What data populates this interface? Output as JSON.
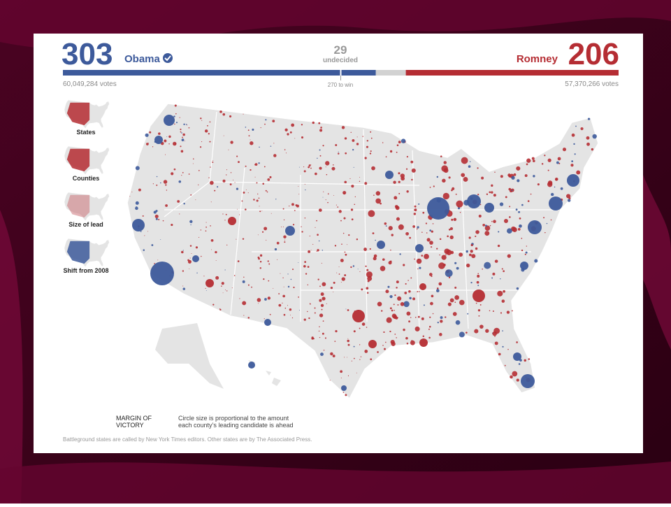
{
  "header": {
    "obama": {
      "electoral": 303,
      "name": "Obama",
      "votes": "60,049,284 votes"
    },
    "undecided": {
      "electoral": 29,
      "label": "undecided"
    },
    "romney": {
      "electoral": 206,
      "name": "Romney",
      "votes": "57,370,266 votes"
    },
    "threshold": "270 to win"
  },
  "views": [
    "States",
    "Counties",
    "Size of lead",
    "Shift from 2008"
  ],
  "legend": {
    "title": "MARGIN OF VICTORY",
    "note": "Circle size is proportional to the amount each county’s leading candidate is ahead"
  },
  "footnote": "Battleground states are called by New York Times editors. Other states are by The Associated Press."
}
